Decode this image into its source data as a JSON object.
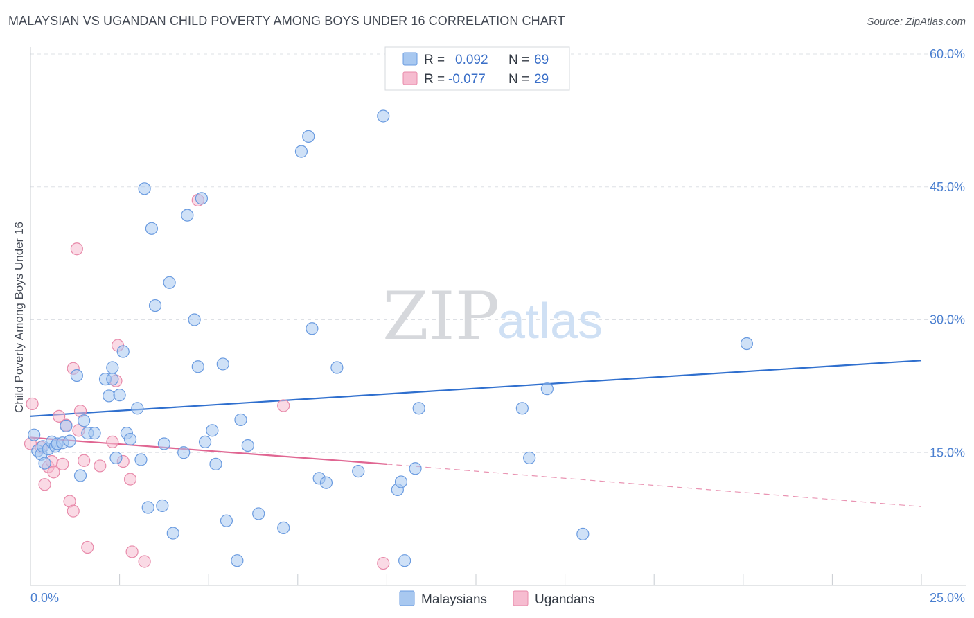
{
  "header": {
    "title": "MALAYSIAN VS UGANDAN CHILD POVERTY AMONG BOYS UNDER 16 CORRELATION CHART",
    "source": "Source: ZipAtlas.com"
  },
  "colors": {
    "malaysians_fill": "#a8c8f0",
    "malaysians_stroke": "#6a9be0",
    "malaysians_line": "#2f6fce",
    "ugandans_fill": "#f6bcd0",
    "ugandans_stroke": "#e88aaa",
    "ugandans_line": "#e06692",
    "grid": "#dde0e5",
    "axis": "#c8ccd2"
  },
  "watermark": {
    "zip": "ZIP",
    "atlas": "atlas"
  },
  "legend": {
    "rows": [
      {
        "r_label": "R =",
        "r_value": "0.092",
        "n_label": "N =",
        "n_value": "69"
      },
      {
        "r_label": "R =",
        "r_value": "-0.077",
        "n_label": "N =",
        "n_value": "29"
      }
    ]
  },
  "bottom_legend": {
    "items": [
      "Malaysians",
      "Ugandans"
    ]
  },
  "chart_data": {
    "type": "scatter",
    "title": "MALAYSIAN VS UGANDAN CHILD POVERTY AMONG BOYS UNDER 16 CORRELATION CHART",
    "xlabel": "",
    "ylabel": "Child Poverty Among Boys Under 16",
    "xlim": [
      0,
      25
    ],
    "ylim": [
      0,
      60
    ],
    "x_tick_labels": [
      "0.0%",
      "25.0%"
    ],
    "y_ticks": [
      15,
      30,
      45,
      60
    ],
    "y_tick_labels": [
      "15.0%",
      "30.0%",
      "45.0%",
      "60.0%"
    ],
    "grid": true,
    "legend_position": "top-center",
    "series": [
      {
        "name": "Malaysians",
        "r": 0.092,
        "n": 69,
        "trend": {
          "x": [
            0,
            25
          ],
          "y": [
            19.1,
            25.4
          ]
        },
        "points": [
          [
            0.1,
            17.0
          ],
          [
            0.2,
            15.2
          ],
          [
            0.3,
            14.8
          ],
          [
            0.35,
            15.7
          ],
          [
            0.4,
            13.8
          ],
          [
            0.5,
            15.4
          ],
          [
            0.6,
            16.2
          ],
          [
            0.7,
            15.7
          ],
          [
            0.75,
            16.0
          ],
          [
            0.9,
            16.1
          ],
          [
            1.0,
            18.0
          ],
          [
            1.1,
            16.3
          ],
          [
            1.3,
            23.7
          ],
          [
            1.4,
            12.4
          ],
          [
            1.5,
            18.6
          ],
          [
            1.6,
            17.2
          ],
          [
            1.8,
            17.2
          ],
          [
            2.1,
            23.3
          ],
          [
            2.3,
            23.3
          ],
          [
            2.2,
            21.4
          ],
          [
            2.3,
            24.6
          ],
          [
            2.4,
            14.4
          ],
          [
            2.5,
            21.5
          ],
          [
            2.6,
            26.4
          ],
          [
            2.7,
            17.2
          ],
          [
            2.8,
            16.5
          ],
          [
            3.0,
            20.0
          ],
          [
            3.1,
            14.2
          ],
          [
            3.2,
            44.8
          ],
          [
            3.3,
            8.8
          ],
          [
            3.4,
            40.3
          ],
          [
            3.5,
            31.6
          ],
          [
            3.7,
            9.0
          ],
          [
            3.75,
            16.0
          ],
          [
            3.9,
            34.2
          ],
          [
            4.0,
            5.9
          ],
          [
            4.3,
            15.0
          ],
          [
            4.4,
            41.8
          ],
          [
            4.6,
            30.0
          ],
          [
            4.7,
            24.7
          ],
          [
            4.8,
            43.7
          ],
          [
            4.9,
            16.2
          ],
          [
            5.1,
            17.5
          ],
          [
            5.2,
            13.7
          ],
          [
            5.4,
            25.0
          ],
          [
            5.5,
            7.3
          ],
          [
            5.8,
            2.8
          ],
          [
            5.9,
            18.7
          ],
          [
            6.1,
            15.8
          ],
          [
            6.4,
            8.1
          ],
          [
            7.1,
            6.5
          ],
          [
            7.6,
            49.0
          ],
          [
            7.8,
            50.7
          ],
          [
            7.9,
            29.0
          ],
          [
            8.1,
            12.1
          ],
          [
            8.3,
            11.6
          ],
          [
            8.6,
            24.6
          ],
          [
            9.2,
            12.9
          ],
          [
            9.9,
            53.0
          ],
          [
            10.3,
            10.8
          ],
          [
            10.4,
            11.7
          ],
          [
            10.5,
            2.8
          ],
          [
            10.8,
            13.2
          ],
          [
            10.9,
            20.0
          ],
          [
            13.8,
            20.0
          ],
          [
            14.0,
            14.4
          ],
          [
            14.5,
            22.2
          ],
          [
            15.5,
            5.8
          ],
          [
            20.1,
            27.3
          ]
        ]
      },
      {
        "name": "Ugandans",
        "r": -0.077,
        "n": 29,
        "trend": {
          "x": [
            0,
            10
          ],
          "y": [
            16.7,
            13.7
          ]
        },
        "trend_dashed": {
          "x": [
            10,
            25
          ],
          "y": [
            13.7,
            8.9
          ]
        },
        "points": [
          [
            0.05,
            20.5
          ],
          [
            0.3,
            15.6
          ],
          [
            0.4,
            11.4
          ],
          [
            0.5,
            13.4
          ],
          [
            0.6,
            14.0
          ],
          [
            0.65,
            12.8
          ],
          [
            0.8,
            19.1
          ],
          [
            0.9,
            13.7
          ],
          [
            1.0,
            18.1
          ],
          [
            1.1,
            9.5
          ],
          [
            1.2,
            8.4
          ],
          [
            1.2,
            24.5
          ],
          [
            1.3,
            38.0
          ],
          [
            1.35,
            17.5
          ],
          [
            1.4,
            19.7
          ],
          [
            1.5,
            14.1
          ],
          [
            1.6,
            4.3
          ],
          [
            1.95,
            13.5
          ],
          [
            2.3,
            16.2
          ],
          [
            2.4,
            23.1
          ],
          [
            2.45,
            27.1
          ],
          [
            2.6,
            14.0
          ],
          [
            2.8,
            12.0
          ],
          [
            2.85,
            3.8
          ],
          [
            3.2,
            2.7
          ],
          [
            4.7,
            43.5
          ],
          [
            7.1,
            20.3
          ],
          [
            9.9,
            2.5
          ],
          [
            0.0,
            16.0
          ]
        ]
      }
    ]
  }
}
